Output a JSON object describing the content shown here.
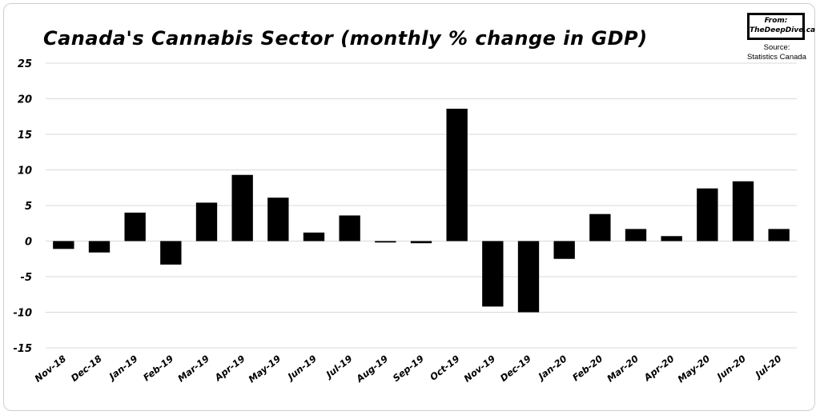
{
  "chart_data": {
    "type": "bar",
    "title": "Canada's Cannabis Sector (monthly % change in GDP)",
    "xlabel": "",
    "ylabel": "",
    "ylim": [
      -15,
      25
    ],
    "yticks": [
      25,
      20,
      15,
      10,
      5,
      0,
      -5,
      -10,
      -15
    ],
    "grid": true,
    "bar_color": "#000000",
    "categories": [
      "Nov-18",
      "Dec-18",
      "Jan-19",
      "Feb-19",
      "Mar-19",
      "Apr-19",
      "May-19",
      "Jun-19",
      "Jul-19",
      "Aug-19",
      "Sep-19",
      "Oct-19",
      "Nov-19",
      "Dec-19",
      "Jan-20",
      "Feb-20",
      "Mar-20",
      "Apr-20",
      "May-20",
      "Jun-20",
      "Jul-20"
    ],
    "values": [
      -1.1,
      -1.6,
      4.0,
      -3.3,
      5.4,
      9.3,
      6.1,
      1.2,
      3.6,
      -0.2,
      -0.3,
      18.6,
      -9.2,
      -10.0,
      -2.5,
      3.8,
      1.7,
      0.7,
      7.4,
      8.4,
      1.7
    ]
  },
  "badge": {
    "line1": "From:",
    "line2": "TheDeepDive.ca"
  },
  "source": {
    "line1": "Source:",
    "line2": "Statistics Canada"
  }
}
